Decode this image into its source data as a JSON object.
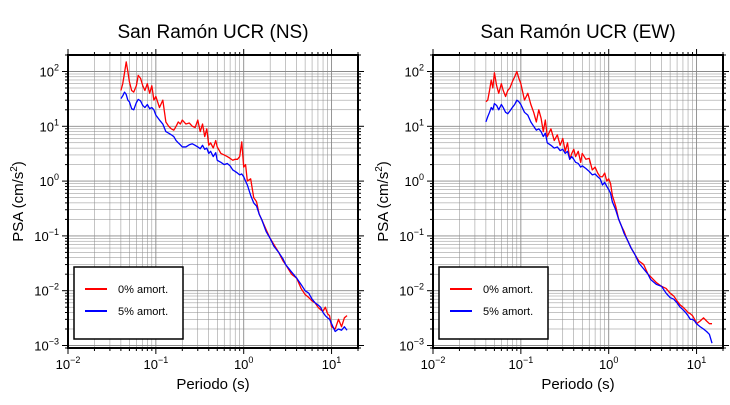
{
  "chart_data": [
    {
      "type": "line",
      "title": "San Ramón UCR (NS)",
      "xlabel": "Periodo (s)",
      "ylabel": {
        "base": "PSA (cm/s",
        "sup": "2",
        "close": ")"
      },
      "x_scale": "log",
      "y_scale": "log",
      "xlim": [
        0.01,
        20
      ],
      "ylim": [
        0.0009,
        200
      ],
      "grid": true,
      "legend_position": "bottom-left",
      "x_ticks": [
        {
          "base": "10",
          "exp": "−2"
        },
        {
          "base": "10",
          "exp": "−1"
        },
        {
          "base": "10",
          "exp": "0"
        },
        {
          "base": "10",
          "exp": "1"
        }
      ],
      "y_ticks": [
        {
          "base": "10",
          "exp": "−3"
        },
        {
          "base": "10",
          "exp": "−2"
        },
        {
          "base": "10",
          "exp": "−1"
        },
        {
          "base": "10",
          "exp": "0"
        },
        {
          "base": "10",
          "exp": "1"
        },
        {
          "base": "10",
          "exp": "2"
        }
      ],
      "series": [
        {
          "name": "0% amort.",
          "color": "#ff0000",
          "x": [
            0.04,
            0.042,
            0.044,
            0.046,
            0.048,
            0.05,
            0.053,
            0.056,
            0.06,
            0.063,
            0.067,
            0.071,
            0.075,
            0.08,
            0.085,
            0.09,
            0.095,
            0.1,
            0.11,
            0.12,
            0.13,
            0.14,
            0.15,
            0.16,
            0.17,
            0.18,
            0.19,
            0.2,
            0.22,
            0.24,
            0.26,
            0.28,
            0.3,
            0.32,
            0.34,
            0.36,
            0.38,
            0.4,
            0.42,
            0.45,
            0.48,
            0.5,
            0.55,
            0.6,
            0.65,
            0.7,
            0.75,
            0.8,
            0.85,
            0.9,
            0.95,
            1.0,
            1.05,
            1.1,
            1.2,
            1.3,
            1.4,
            1.5,
            1.6,
            1.8,
            2.0,
            2.2,
            2.5,
            2.8,
            3.0,
            3.5,
            4.0,
            4.5,
            5.0,
            5.5,
            6.0,
            6.5,
            7.0,
            7.5,
            8.0,
            8.5,
            9.0,
            9.5,
            10.0,
            11.0,
            12.0,
            13.0,
            14.0,
            15.0
          ],
          "y": [
            45,
            60,
            95,
            150,
            100,
            65,
            45,
            42,
            55,
            85,
            75,
            55,
            45,
            60,
            40,
            55,
            30,
            35,
            22,
            30,
            12,
            10,
            9,
            8.5,
            10,
            12,
            11,
            13,
            11,
            11.5,
            10,
            9.5,
            13,
            8,
            11,
            6.5,
            9,
            4.5,
            5,
            4,
            5.5,
            4.2,
            3.2,
            3,
            2.8,
            2.6,
            2.4,
            2.5,
            2.5,
            2.8,
            5.2,
            1.8,
            2.0,
            1.0,
            1.1,
            0.5,
            0.42,
            0.25,
            0.2,
            0.13,
            0.09,
            0.07,
            0.05,
            0.035,
            0.03,
            0.02,
            0.017,
            0.011,
            0.0085,
            0.0075,
            0.0065,
            0.006,
            0.005,
            0.0045,
            0.0042,
            0.005,
            0.0038,
            0.0035,
            0.0022,
            0.002,
            0.003,
            0.0022,
            0.0032,
            0.0035
          ]
        },
        {
          "name": "5% amort.",
          "color": "#0000ff",
          "x": [
            0.04,
            0.042,
            0.044,
            0.046,
            0.048,
            0.05,
            0.053,
            0.056,
            0.06,
            0.063,
            0.067,
            0.071,
            0.075,
            0.08,
            0.085,
            0.09,
            0.095,
            0.1,
            0.11,
            0.12,
            0.13,
            0.14,
            0.15,
            0.16,
            0.17,
            0.18,
            0.19,
            0.2,
            0.22,
            0.24,
            0.26,
            0.28,
            0.3,
            0.32,
            0.34,
            0.36,
            0.38,
            0.4,
            0.42,
            0.45,
            0.48,
            0.5,
            0.55,
            0.6,
            0.65,
            0.7,
            0.75,
            0.8,
            0.85,
            0.9,
            0.95,
            1.0,
            1.05,
            1.1,
            1.2,
            1.3,
            1.4,
            1.5,
            1.6,
            1.8,
            2.0,
            2.2,
            2.5,
            2.8,
            3.0,
            3.5,
            4.0,
            4.5,
            5.0,
            5.5,
            6.0,
            6.5,
            7.0,
            7.5,
            8.0,
            8.5,
            9.0,
            9.5,
            10.0,
            11.0,
            12.0,
            13.0,
            14.0,
            15.0
          ],
          "y": [
            32,
            36,
            42,
            38,
            30,
            28,
            21,
            20,
            27,
            31,
            29,
            24,
            22,
            25,
            21,
            22,
            20,
            16,
            13,
            11,
            8,
            7.5,
            7,
            6.5,
            5.5,
            5,
            4.6,
            4.2,
            4.2,
            4.6,
            4.8,
            4.5,
            4.2,
            3.9,
            4.5,
            3.8,
            4.0,
            3.2,
            3.5,
            2.8,
            3.3,
            2.4,
            2.2,
            2.0,
            2.1,
            1.9,
            1.6,
            1.5,
            1.4,
            1.3,
            1.35,
            1.2,
            1.0,
            0.85,
            0.55,
            0.4,
            0.35,
            0.25,
            0.2,
            0.12,
            0.09,
            0.065,
            0.05,
            0.038,
            0.03,
            0.022,
            0.017,
            0.013,
            0.01,
            0.009,
            0.007,
            0.006,
            0.0055,
            0.005,
            0.004,
            0.0035,
            0.0032,
            0.003,
            0.0025,
            0.0018,
            0.002,
            0.0019,
            0.0022,
            0.0019
          ]
        }
      ]
    },
    {
      "type": "line",
      "title": "San Ramón UCR (EW)",
      "xlabel": "Periodo (s)",
      "ylabel": {
        "base": "PSA (cm/s",
        "sup": "2",
        "close": ")"
      },
      "x_scale": "log",
      "y_scale": "log",
      "xlim": [
        0.01,
        20
      ],
      "ylim": [
        0.0009,
        200
      ],
      "grid": true,
      "legend_position": "bottom-left",
      "x_ticks": [
        {
          "base": "10",
          "exp": "−2"
        },
        {
          "base": "10",
          "exp": "−1"
        },
        {
          "base": "10",
          "exp": "0"
        },
        {
          "base": "10",
          "exp": "1"
        }
      ],
      "y_ticks": [
        {
          "base": "10",
          "exp": "−3"
        },
        {
          "base": "10",
          "exp": "−2"
        },
        {
          "base": "10",
          "exp": "−1"
        },
        {
          "base": "10",
          "exp": "0"
        },
        {
          "base": "10",
          "exp": "1"
        },
        {
          "base": "10",
          "exp": "2"
        }
      ],
      "series": [
        {
          "name": "0% amort.",
          "color": "#ff0000",
          "x": [
            0.04,
            0.042,
            0.044,
            0.046,
            0.048,
            0.05,
            0.053,
            0.056,
            0.06,
            0.063,
            0.067,
            0.071,
            0.075,
            0.08,
            0.085,
            0.09,
            0.095,
            0.1,
            0.11,
            0.12,
            0.13,
            0.14,
            0.15,
            0.16,
            0.17,
            0.18,
            0.19,
            0.2,
            0.22,
            0.24,
            0.26,
            0.28,
            0.3,
            0.32,
            0.34,
            0.36,
            0.38,
            0.4,
            0.42,
            0.45,
            0.48,
            0.5,
            0.55,
            0.6,
            0.65,
            0.7,
            0.75,
            0.8,
            0.85,
            0.9,
            0.95,
            1.0,
            1.05,
            1.1,
            1.2,
            1.3,
            1.4,
            1.5,
            1.6,
            1.8,
            2.0,
            2.2,
            2.5,
            2.8,
            3.0,
            3.5,
            4.0,
            4.5,
            5.0,
            5.5,
            6.0,
            6.5,
            7.0,
            7.5,
            8.0,
            8.5,
            9.0,
            9.5,
            10.0,
            11.0,
            12.0,
            13.0,
            14.0,
            15.0
          ],
          "y": [
            28,
            30,
            45,
            70,
            50,
            95,
            55,
            40,
            60,
            45,
            35,
            45,
            50,
            65,
            80,
            100,
            75,
            60,
            30,
            40,
            25,
            18,
            12,
            20,
            14,
            8,
            13,
            6.5,
            9,
            5.5,
            7,
            4.5,
            6,
            3.5,
            5,
            2.5,
            3.2,
            3.8,
            2.8,
            3.5,
            2.2,
            3.2,
            2.5,
            2.6,
            1.6,
            1.8,
            1.4,
            1.2,
            1.2,
            1.4,
            1.0,
            1.1,
            0.9,
            0.55,
            0.35,
            0.2,
            0.15,
            0.12,
            0.09,
            0.06,
            0.045,
            0.035,
            0.03,
            0.02,
            0.018,
            0.014,
            0.012,
            0.011,
            0.009,
            0.008,
            0.0065,
            0.0055,
            0.005,
            0.0045,
            0.004,
            0.0038,
            0.0035,
            0.003,
            0.0025,
            0.0028,
            0.0032,
            0.0028,
            0.0025,
            0.0025
          ]
        },
        {
          "name": "5% amort.",
          "color": "#0000ff",
          "x": [
            0.04,
            0.042,
            0.044,
            0.046,
            0.048,
            0.05,
            0.053,
            0.056,
            0.06,
            0.063,
            0.067,
            0.071,
            0.075,
            0.08,
            0.085,
            0.09,
            0.095,
            0.1,
            0.11,
            0.12,
            0.13,
            0.14,
            0.15,
            0.16,
            0.17,
            0.18,
            0.19,
            0.2,
            0.22,
            0.24,
            0.26,
            0.28,
            0.3,
            0.32,
            0.34,
            0.36,
            0.38,
            0.4,
            0.42,
            0.45,
            0.48,
            0.5,
            0.55,
            0.6,
            0.65,
            0.7,
            0.75,
            0.8,
            0.85,
            0.9,
            0.95,
            1.0,
            1.05,
            1.1,
            1.2,
            1.3,
            1.4,
            1.5,
            1.6,
            1.8,
            2.0,
            2.2,
            2.5,
            2.8,
            3.0,
            3.5,
            4.0,
            4.5,
            5.0,
            5.5,
            6.0,
            6.5,
            7.0,
            7.5,
            8.0,
            8.5,
            9.0,
            9.5,
            10.0,
            11.0,
            12.0,
            13.0,
            14.0,
            15.0
          ],
          "y": [
            12,
            15,
            18,
            22,
            20,
            26,
            24,
            20,
            25,
            22,
            18,
            17,
            19,
            22,
            25,
            30,
            28,
            25,
            18,
            16,
            12,
            10,
            8.5,
            9,
            8,
            6.5,
            7.5,
            5,
            4.5,
            4,
            4.2,
            3.6,
            3.8,
            3.2,
            3.5,
            2.5,
            2.8,
            2.5,
            2.2,
            2.1,
            1.8,
            1.9,
            1.7,
            1.5,
            1.3,
            1.35,
            1.2,
            1.1,
            0.85,
            0.95,
            0.8,
            0.7,
            0.6,
            0.42,
            0.3,
            0.2,
            0.15,
            0.11,
            0.09,
            0.06,
            0.045,
            0.032,
            0.025,
            0.02,
            0.016,
            0.013,
            0.012,
            0.009,
            0.0075,
            0.007,
            0.006,
            0.005,
            0.0045,
            0.004,
            0.0035,
            0.003,
            0.003,
            0.0028,
            0.0025,
            0.0022,
            0.002,
            0.0018,
            0.0016,
            0.0011
          ]
        }
      ]
    }
  ]
}
